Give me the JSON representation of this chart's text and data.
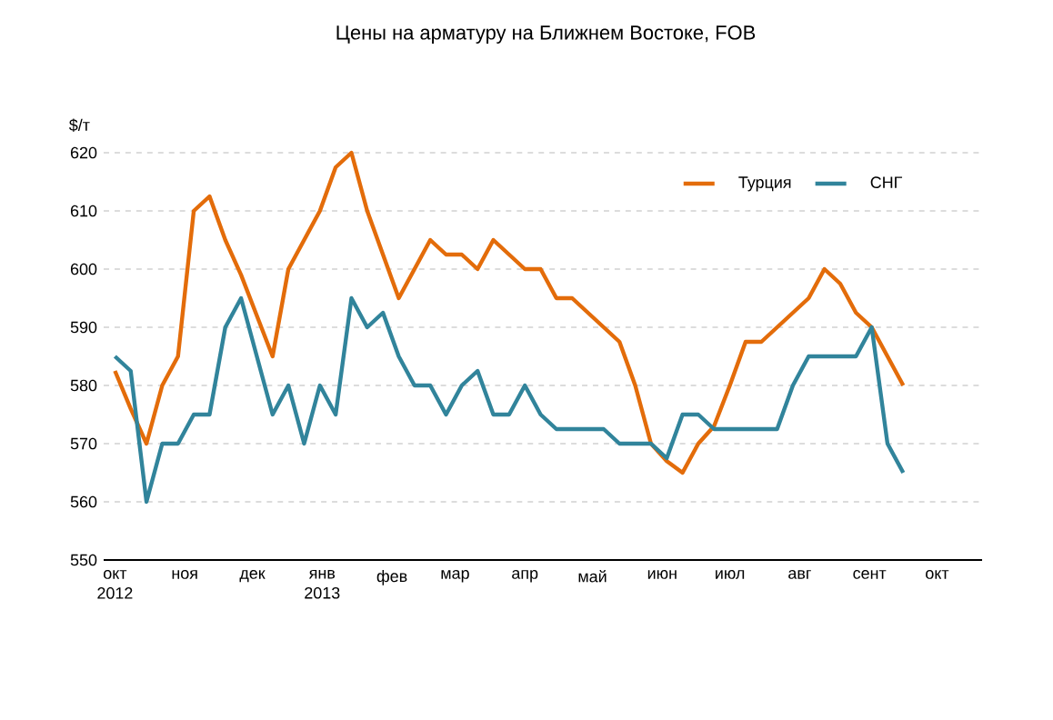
{
  "chart_data": {
    "type": "line",
    "title": "Цены на арматуру на Ближнем Востоке, FOB",
    "ylabel": "$/т",
    "x": [
      "2012-10-01",
      "2012-10-08",
      "2012-10-15",
      "2012-10-22",
      "2012-10-29",
      "2012-11-05",
      "2012-11-12",
      "2012-11-19",
      "2012-11-26",
      "2012-12-03",
      "2012-12-10",
      "2012-12-17",
      "2012-12-24",
      "2012-12-31",
      "2013-01-07",
      "2013-01-14",
      "2013-01-21",
      "2013-01-28",
      "2013-02-04",
      "2013-02-11",
      "2013-02-18",
      "2013-02-25",
      "2013-03-04",
      "2013-03-11",
      "2013-03-18",
      "2013-03-25",
      "2013-04-01",
      "2013-04-08",
      "2013-04-15",
      "2013-04-22",
      "2013-04-29",
      "2013-05-06",
      "2013-05-13",
      "2013-05-20",
      "2013-05-27",
      "2013-06-03",
      "2013-06-10",
      "2013-06-17",
      "2013-06-24",
      "2013-07-01",
      "2013-07-08",
      "2013-07-15",
      "2013-07-22",
      "2013-07-29",
      "2013-08-05",
      "2013-08-12",
      "2013-08-19",
      "2013-08-26",
      "2013-09-02",
      "2013-09-09",
      "2013-09-16"
    ],
    "series": [
      {
        "name": "Турция",
        "color": "#e36c0a",
        "values": [
          582.5,
          576,
          570,
          580,
          585,
          610,
          612.5,
          605,
          599,
          592,
          585,
          600,
          605,
          610,
          617.5,
          620,
          610,
          602.5,
          595,
          600,
          605,
          602.5,
          602.5,
          600,
          605,
          602.5,
          600,
          600,
          595,
          595,
          592.5,
          590,
          587.5,
          580,
          570,
          567,
          565,
          570,
          573,
          580,
          587.5,
          587.5,
          590,
          592.5,
          595,
          600,
          597.5,
          592.5,
          590,
          585,
          580
        ]
      },
      {
        "name": "СНГ",
        "color": "#31849b",
        "values": [
          585,
          582.5,
          560,
          570,
          570,
          575,
          575,
          590,
          595,
          585,
          575,
          580,
          570,
          580,
          575,
          595,
          590,
          592.5,
          585,
          580,
          580,
          575,
          580,
          582.5,
          575,
          575,
          580,
          575,
          572.5,
          572.5,
          572.5,
          572.5,
          570,
          570,
          570,
          567.5,
          575,
          575,
          572.5,
          572.5,
          572.5,
          572.5,
          572.5,
          580,
          585,
          585,
          585,
          585,
          590,
          570,
          565
        ]
      }
    ],
    "xlim": [
      "2012-09-26",
      "2013-10-21"
    ],
    "xticks": [
      {
        "value": "2012-10-01",
        "label": "окт 2012"
      },
      {
        "value": "2012-11-01",
        "label": "ноя"
      },
      {
        "value": "2012-12-01",
        "label": "дек"
      },
      {
        "value": "2013-01-01",
        "label": "янв 2013"
      },
      {
        "value": "2013-02-01",
        "label": "фев"
      },
      {
        "value": "2013-03-01",
        "label": "мар"
      },
      {
        "value": "2013-04-01",
        "label": "апр"
      },
      {
        "value": "2013-05-01",
        "label": "май"
      },
      {
        "value": "2013-06-01",
        "label": "июн"
      },
      {
        "value": "2013-07-01",
        "label": "июл"
      },
      {
        "value": "2013-08-01",
        "label": "авг"
      },
      {
        "value": "2013-09-01",
        "label": "сент"
      },
      {
        "value": "2013-10-01",
        "label": "окт"
      }
    ],
    "ylim": [
      550,
      620
    ],
    "yticks": [
      550,
      560,
      570,
      580,
      590,
      600,
      610,
      620
    ],
    "grid": "y",
    "legend": "top right"
  }
}
